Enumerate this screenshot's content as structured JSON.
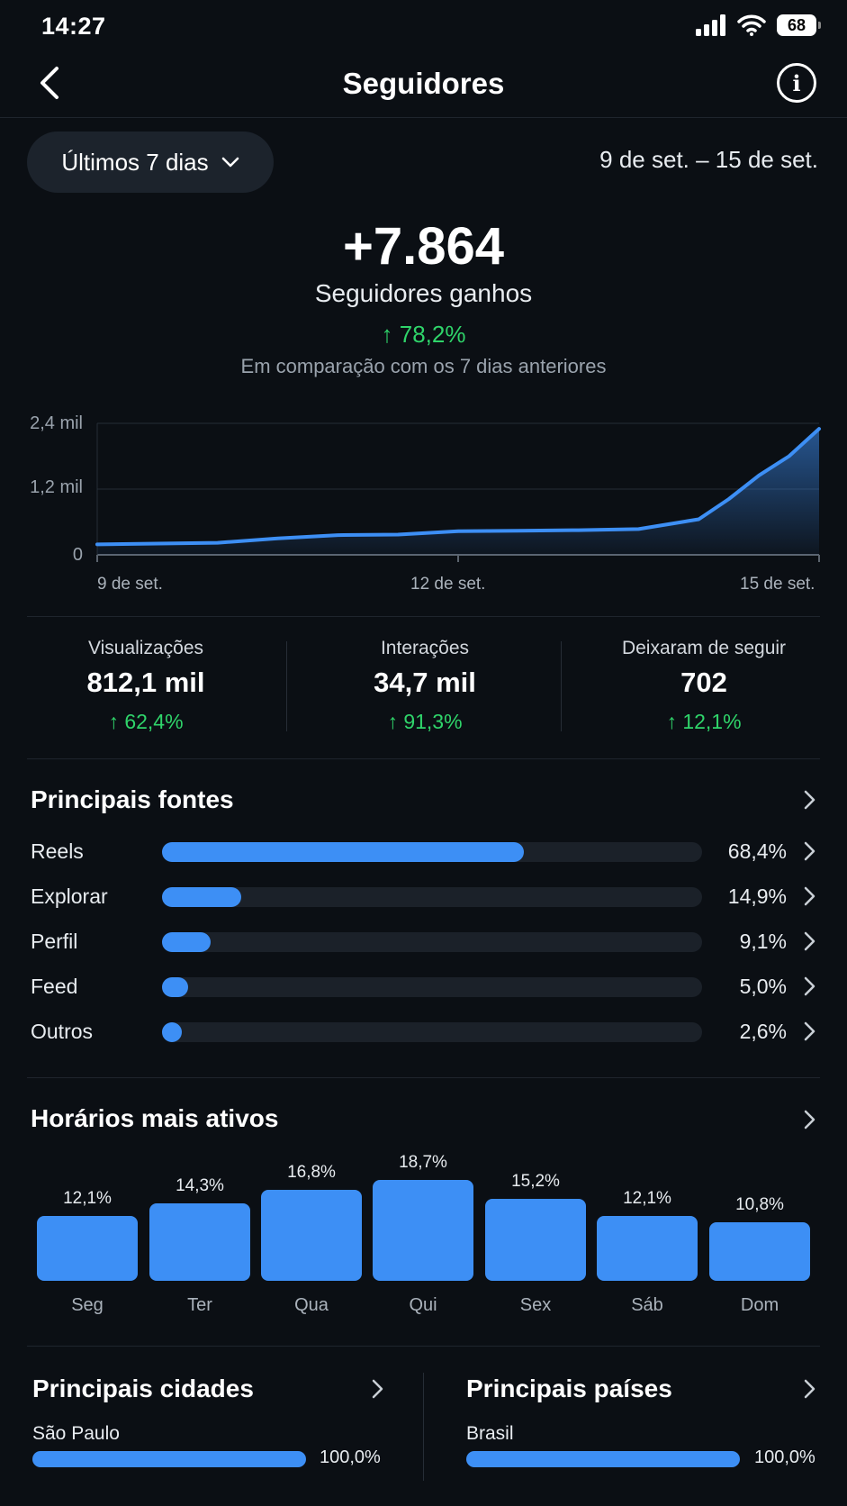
{
  "status": {
    "time": "14:27",
    "battery": "68"
  },
  "header": {
    "title": "Seguidores"
  },
  "filter": {
    "range_label": "Últimos 7 dias",
    "date_range": "9 de set. – 15 de set."
  },
  "summary": {
    "value": "+7.864",
    "label": "Seguidores ganhos",
    "change": "↑ 78,2%",
    "comparison": "Em comparação com os 7 dias anteriores"
  },
  "chart_data": {
    "type": "area",
    "x": [
      0,
      0.5,
      1,
      1.5,
      2,
      2.5,
      3,
      3.5,
      4,
      4.5,
      5,
      5.25,
      5.5,
      5.75,
      6
    ],
    "y": [
      190,
      205,
      220,
      300,
      360,
      370,
      430,
      440,
      450,
      470,
      650,
      1020,
      1450,
      1800,
      2300
    ],
    "x_tick_labels": [
      "9 de set.",
      "12 de set.",
      "15 de set."
    ],
    "x_tick_positions": [
      0,
      3,
      6
    ],
    "y_ticks": [
      0,
      1200,
      2400
    ],
    "y_tick_labels": [
      "0",
      "1,2 mil",
      "2,4 mil"
    ],
    "ylim": [
      0,
      2400
    ],
    "xlim": [
      0,
      6
    ],
    "grid": true,
    "color": "#3d8ff5"
  },
  "metrics": [
    {
      "label": "Visualizações",
      "value": "812,1 mil",
      "change": "↑ 62,4%"
    },
    {
      "label": "Interações",
      "value": "34,7 mil",
      "change": "↑ 91,3%"
    },
    {
      "label": "Deixaram de seguir",
      "value": "702",
      "change": "↑ 12,1%"
    }
  ],
  "sources": {
    "title": "Principais fontes",
    "items": [
      {
        "label": "Reels",
        "percent": 68.4,
        "value": "68,4%"
      },
      {
        "label": "Explorar",
        "percent": 14.9,
        "value": "14,9%"
      },
      {
        "label": "Perfil",
        "percent": 9.1,
        "value": "9,1%"
      },
      {
        "label": "Feed",
        "percent": 5.0,
        "value": "5,0%"
      },
      {
        "label": "Outros",
        "percent": 2.6,
        "value": "2,6%"
      }
    ]
  },
  "active_hours": {
    "title": "Horários mais ativos",
    "items": [
      {
        "day": "Seg",
        "percent": 12.1,
        "value": "12,1%"
      },
      {
        "day": "Ter",
        "percent": 14.3,
        "value": "14,3%"
      },
      {
        "day": "Qua",
        "percent": 16.8,
        "value": "16,8%"
      },
      {
        "day": "Qui",
        "percent": 18.7,
        "value": "18,7%"
      },
      {
        "day": "Sex",
        "percent": 15.2,
        "value": "15,2%"
      },
      {
        "day": "Sáb",
        "percent": 12.1,
        "value": "12,1%"
      },
      {
        "day": "Dom",
        "percent": 10.8,
        "value": "10,8%"
      }
    ]
  },
  "cities": {
    "title": "Principais cidades",
    "name": "São Paulo",
    "percent": 100,
    "value": "100,0%"
  },
  "countries": {
    "title": "Principais países",
    "name": "Brasil",
    "percent": 100,
    "value": "100,0%"
  },
  "icons": {
    "back": "chevron-left-icon",
    "info": "info-icon",
    "dropdown": "chevron-down-icon",
    "row": "chevron-right-icon"
  },
  "colors": {
    "accent": "#3d8ff5",
    "positive": "#2fd46a",
    "background": "#0b0f14"
  }
}
